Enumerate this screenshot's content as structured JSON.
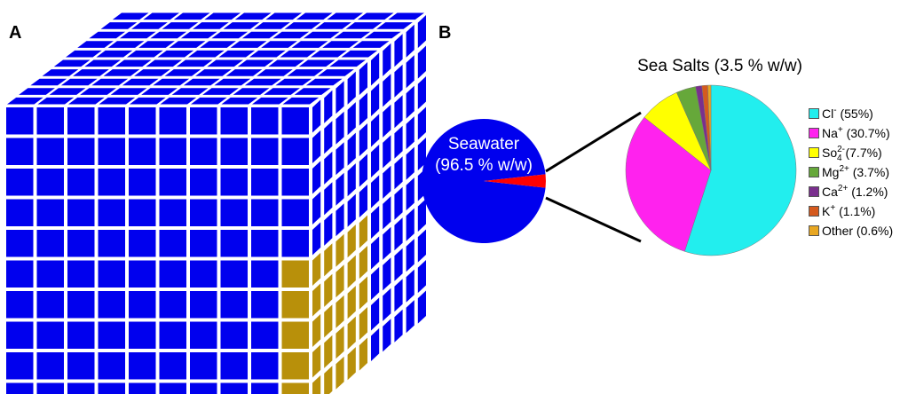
{
  "panels": {
    "a": "A",
    "b": "B"
  },
  "cube": {
    "colors": {
      "water": "#0000ee",
      "salt": "#b8900a",
      "gap": "#ffffff"
    }
  },
  "chart_data": [
    {
      "type": "pie",
      "label_line1": "Seawater",
      "label_line2": "(96.5 % w/w)",
      "slices": [
        {
          "name": "Seawater",
          "value": 96.5,
          "color": "#0000ee"
        },
        {
          "name": "Sea Salts",
          "value": 3.5,
          "color": "#ff0000"
        }
      ]
    },
    {
      "type": "pie",
      "title": "Sea Salts (3.5 % w/w)",
      "legend_position": "right",
      "slices": [
        {
          "base": "Cl",
          "sup": "-",
          "sub": "",
          "pct": "(55%)",
          "value": 55,
          "color": "#22eeee"
        },
        {
          "base": "Na",
          "sup": "+",
          "sub": "",
          "pct": "(30.7%)",
          "value": 30.7,
          "color": "#ff22ee"
        },
        {
          "base": "So",
          "sup": "2-",
          "sub": "4",
          "pct": "(7.7%)",
          "value": 7.7,
          "color": "#ffff00"
        },
        {
          "base": "Mg",
          "sup": "2+",
          "sub": "",
          "pct": "(3.7%)",
          "value": 3.7,
          "color": "#66a83a"
        },
        {
          "base": "Ca",
          "sup": "2+",
          "sub": "",
          "pct": "(1.2%)",
          "value": 1.2,
          "color": "#7a2f8e"
        },
        {
          "base": "K",
          "sup": "+",
          "sub": "",
          "pct": "(1.1%)",
          "value": 1.1,
          "color": "#d55a1e"
        },
        {
          "base": "Other",
          "sup": "",
          "sub": "",
          "pct": "(0.6%)",
          "value": 0.6,
          "color": "#e8a722"
        }
      ]
    }
  ]
}
